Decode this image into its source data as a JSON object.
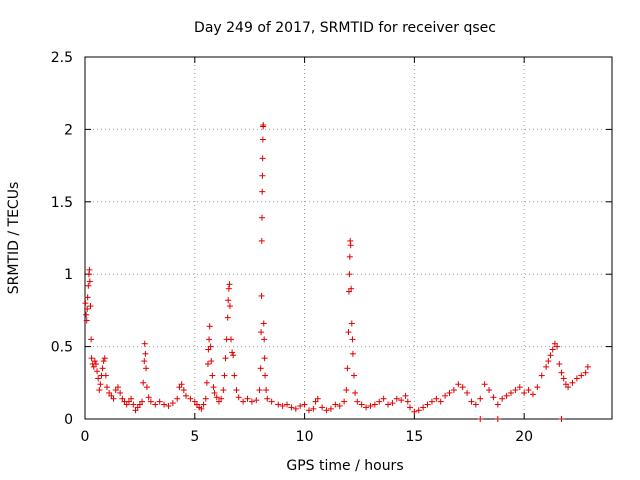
{
  "chart_data": {
    "type": "scatter",
    "title": "Day 249 of 2017, SRMTID for receiver qsec",
    "xlabel": "GPS time / hours",
    "ylabel": "SRMTID / TECUs",
    "xlim": [
      0,
      24
    ],
    "ylim": [
      0,
      2.5
    ],
    "xticks": [
      0,
      5,
      10,
      15,
      20
    ],
    "xtick_labels": [
      "0",
      "5",
      "10",
      "15",
      "20"
    ],
    "yticks": [
      0,
      0.5,
      1,
      1.5,
      2,
      2.5
    ],
    "ytick_labels": [
      "0",
      "0.5",
      "1",
      "1.5",
      "2",
      "2.5"
    ],
    "grid": true,
    "marker": "+",
    "series": [
      {
        "name": "SRMTID",
        "color": "#e00000",
        "points": [
          [
            0.02,
            0.8
          ],
          [
            0.05,
            0.72
          ],
          [
            0.08,
            0.68
          ],
          [
            0.1,
            0.76
          ],
          [
            0.12,
            0.84
          ],
          [
            0.15,
            0.92
          ],
          [
            0.18,
            1.0
          ],
          [
            0.2,
            1.03
          ],
          [
            0.22,
            0.95
          ],
          [
            0.25,
            0.78
          ],
          [
            0.28,
            0.55
          ],
          [
            0.3,
            0.42
          ],
          [
            0.35,
            0.38
          ],
          [
            0.4,
            0.36
          ],
          [
            0.45,
            0.4
          ],
          [
            0.5,
            0.38
          ],
          [
            0.55,
            0.33
          ],
          [
            0.6,
            0.28
          ],
          [
            0.65,
            0.2
          ],
          [
            0.7,
            0.24
          ],
          [
            0.75,
            0.3
          ],
          [
            0.8,
            0.35
          ],
          [
            0.85,
            0.4
          ],
          [
            0.9,
            0.42
          ],
          [
            0.95,
            0.3
          ],
          [
            1.0,
            0.22
          ],
          [
            1.1,
            0.18
          ],
          [
            1.2,
            0.16
          ],
          [
            1.3,
            0.14
          ],
          [
            1.4,
            0.2
          ],
          [
            1.5,
            0.22
          ],
          [
            1.6,
            0.18
          ],
          [
            1.7,
            0.14
          ],
          [
            1.8,
            0.12
          ],
          [
            1.9,
            0.1
          ],
          [
            2.0,
            0.12
          ],
          [
            2.1,
            0.14
          ],
          [
            2.2,
            0.1
          ],
          [
            2.3,
            0.06
          ],
          [
            2.4,
            0.08
          ],
          [
            2.5,
            0.1
          ],
          [
            2.6,
            0.12
          ],
          [
            2.65,
            0.25
          ],
          [
            2.7,
            0.4
          ],
          [
            2.72,
            0.52
          ],
          [
            2.75,
            0.45
          ],
          [
            2.78,
            0.35
          ],
          [
            2.82,
            0.22
          ],
          [
            2.9,
            0.15
          ],
          [
            3.0,
            0.12
          ],
          [
            3.2,
            0.1
          ],
          [
            3.4,
            0.12
          ],
          [
            3.6,
            0.1
          ],
          [
            3.8,
            0.09
          ],
          [
            4.0,
            0.11
          ],
          [
            4.2,
            0.14
          ],
          [
            4.3,
            0.22
          ],
          [
            4.4,
            0.24
          ],
          [
            4.5,
            0.2
          ],
          [
            4.6,
            0.16
          ],
          [
            4.8,
            0.14
          ],
          [
            5.0,
            0.12
          ],
          [
            5.1,
            0.1
          ],
          [
            5.2,
            0.08
          ],
          [
            5.3,
            0.07
          ],
          [
            5.4,
            0.1
          ],
          [
            5.5,
            0.14
          ],
          [
            5.55,
            0.25
          ],
          [
            5.6,
            0.38
          ],
          [
            5.62,
            0.48
          ],
          [
            5.65,
            0.55
          ],
          [
            5.68,
            0.64
          ],
          [
            5.72,
            0.5
          ],
          [
            5.75,
            0.4
          ],
          [
            5.8,
            0.3
          ],
          [
            5.85,
            0.22
          ],
          [
            5.9,
            0.18
          ],
          [
            6.0,
            0.15
          ],
          [
            6.1,
            0.12
          ],
          [
            6.2,
            0.14
          ],
          [
            6.3,
            0.2
          ],
          [
            6.35,
            0.3
          ],
          [
            6.4,
            0.42
          ],
          [
            6.45,
            0.55
          ],
          [
            6.5,
            0.7
          ],
          [
            6.52,
            0.82
          ],
          [
            6.55,
            0.9
          ],
          [
            6.58,
            0.93
          ],
          [
            6.6,
            0.78
          ],
          [
            6.65,
            0.55
          ],
          [
            6.7,
            0.46
          ],
          [
            6.75,
            0.44
          ],
          [
            6.8,
            0.3
          ],
          [
            6.9,
            0.2
          ],
          [
            7.0,
            0.15
          ],
          [
            7.2,
            0.12
          ],
          [
            7.4,
            0.14
          ],
          [
            7.6,
            0.12
          ],
          [
            7.8,
            0.13
          ],
          [
            7.95,
            0.2
          ],
          [
            8.0,
            0.35
          ],
          [
            8.02,
            0.6
          ],
          [
            8.04,
            0.85
          ],
          [
            8.05,
            1.23
          ],
          [
            8.06,
            1.39
          ],
          [
            8.07,
            1.57
          ],
          [
            8.08,
            1.68
          ],
          [
            8.09,
            1.8
          ],
          [
            8.1,
            1.93
          ],
          [
            8.11,
            2.02
          ],
          [
            8.12,
            2.03
          ],
          [
            8.14,
            0.66
          ],
          [
            8.16,
            0.55
          ],
          [
            8.18,
            0.42
          ],
          [
            8.2,
            0.3
          ],
          [
            8.25,
            0.2
          ],
          [
            8.3,
            0.14
          ],
          [
            8.5,
            0.12
          ],
          [
            8.8,
            0.1
          ],
          [
            9.0,
            0.09
          ],
          [
            9.2,
            0.1
          ],
          [
            9.4,
            0.08
          ],
          [
            9.6,
            0.07
          ],
          [
            9.8,
            0.09
          ],
          [
            10.0,
            0.1
          ],
          [
            10.2,
            0.06
          ],
          [
            10.4,
            0.07
          ],
          [
            10.5,
            0.12
          ],
          [
            10.6,
            0.14
          ],
          [
            10.8,
            0.08
          ],
          [
            11.0,
            0.06
          ],
          [
            11.2,
            0.07
          ],
          [
            11.4,
            0.1
          ],
          [
            11.6,
            0.09
          ],
          [
            11.8,
            0.12
          ],
          [
            11.9,
            0.2
          ],
          [
            11.95,
            0.35
          ],
          [
            12.0,
            0.6
          ],
          [
            12.02,
            0.88
          ],
          [
            12.04,
            1.0
          ],
          [
            12.06,
            1.12
          ],
          [
            12.08,
            1.23
          ],
          [
            12.1,
            1.2
          ],
          [
            12.12,
            0.9
          ],
          [
            12.15,
            0.66
          ],
          [
            12.18,
            0.55
          ],
          [
            12.2,
            0.45
          ],
          [
            12.25,
            0.3
          ],
          [
            12.3,
            0.18
          ],
          [
            12.4,
            0.12
          ],
          [
            12.6,
            0.1
          ],
          [
            12.8,
            0.08
          ],
          [
            13.0,
            0.09
          ],
          [
            13.2,
            0.1
          ],
          [
            13.4,
            0.12
          ],
          [
            13.6,
            0.14
          ],
          [
            13.8,
            0.1
          ],
          [
            14.0,
            0.11
          ],
          [
            14.2,
            0.14
          ],
          [
            14.4,
            0.13
          ],
          [
            14.6,
            0.16
          ],
          [
            14.7,
            0.12
          ],
          [
            14.8,
            0.08
          ],
          [
            15.0,
            0.05
          ],
          [
            15.2,
            0.06
          ],
          [
            15.4,
            0.08
          ],
          [
            15.6,
            0.1
          ],
          [
            15.8,
            0.12
          ],
          [
            16.0,
            0.14
          ],
          [
            16.2,
            0.12
          ],
          [
            16.4,
            0.16
          ],
          [
            16.6,
            0.18
          ],
          [
            16.8,
            0.2
          ],
          [
            17.0,
            0.24
          ],
          [
            17.2,
            0.22
          ],
          [
            17.4,
            0.18
          ],
          [
            17.6,
            0.12
          ],
          [
            17.8,
            0.1
          ],
          [
            18.0,
            0.14
          ],
          [
            18.2,
            0.24
          ],
          [
            18.4,
            0.2
          ],
          [
            18.6,
            0.15
          ],
          [
            18.8,
            0.1
          ],
          [
            19.0,
            0.14
          ],
          [
            19.2,
            0.16
          ],
          [
            19.4,
            0.18
          ],
          [
            19.6,
            0.2
          ],
          [
            19.8,
            0.22
          ],
          [
            20.0,
            0.18
          ],
          [
            20.2,
            0.2
          ],
          [
            20.4,
            0.17
          ],
          [
            20.6,
            0.22
          ],
          [
            20.8,
            0.3
          ],
          [
            21.0,
            0.36
          ],
          [
            21.1,
            0.4
          ],
          [
            21.2,
            0.44
          ],
          [
            21.3,
            0.48
          ],
          [
            21.4,
            0.52
          ],
          [
            21.5,
            0.5
          ],
          [
            21.6,
            0.38
          ],
          [
            21.7,
            0.32
          ],
          [
            21.8,
            0.28
          ],
          [
            21.9,
            0.24
          ],
          [
            22.0,
            0.22
          ],
          [
            22.2,
            0.25
          ],
          [
            22.4,
            0.28
          ],
          [
            22.6,
            0.3
          ],
          [
            22.8,
            0.32
          ],
          [
            22.9,
            0.36
          ],
          [
            18.0,
            0.0
          ],
          [
            18.8,
            0.0
          ],
          [
            21.7,
            0.0
          ]
        ]
      }
    ]
  }
}
